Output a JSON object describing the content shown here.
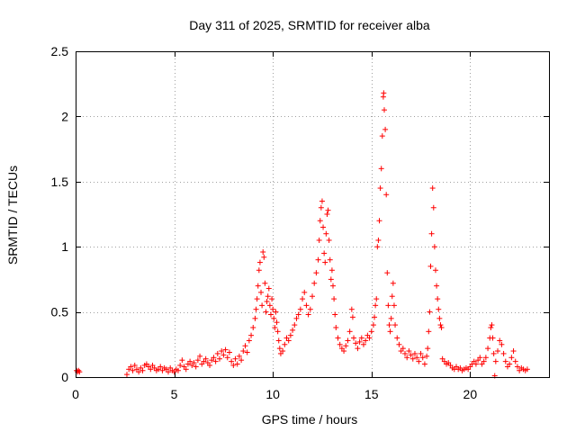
{
  "chart_data": {
    "type": "scatter",
    "title": "Day 311 of 2025, SRMTID for receiver alba",
    "xlabel": "GPS time / hours",
    "ylabel": "SRMTID / TECUs",
    "xlim": [
      0,
      24
    ],
    "ylim": [
      0,
      2.5
    ],
    "xticks": [
      0,
      5,
      10,
      15,
      20
    ],
    "xtick_labels": [
      "0",
      "5",
      "10",
      "15",
      "20"
    ],
    "yticks": [
      0,
      0.5,
      1,
      1.5,
      2,
      2.5
    ],
    "ytick_labels": [
      "0",
      "0.5",
      "1",
      "1.5",
      "2",
      "2.5"
    ],
    "grid": true,
    "marker": "+",
    "series_color": "#ff0000",
    "series": [
      {
        "name": "SRMTID",
        "points": [
          [
            0.05,
            0.05
          ],
          [
            0.1,
            0.04
          ],
          [
            0.15,
            0.05
          ],
          [
            0.2,
            0.04
          ],
          [
            2.6,
            0.02
          ],
          [
            2.7,
            0.06
          ],
          [
            2.8,
            0.08
          ],
          [
            2.9,
            0.05
          ],
          [
            3.0,
            0.09
          ],
          [
            3.1,
            0.06
          ],
          [
            3.2,
            0.04
          ],
          [
            3.3,
            0.07
          ],
          [
            3.4,
            0.05
          ],
          [
            3.5,
            0.09
          ],
          [
            3.6,
            0.1
          ],
          [
            3.7,
            0.08
          ],
          [
            3.8,
            0.06
          ],
          [
            3.9,
            0.09
          ],
          [
            4.0,
            0.07
          ],
          [
            4.1,
            0.05
          ],
          [
            4.2,
            0.06
          ],
          [
            4.3,
            0.08
          ],
          [
            4.4,
            0.05
          ],
          [
            4.5,
            0.07
          ],
          [
            4.6,
            0.06
          ],
          [
            4.7,
            0.04
          ],
          [
            4.8,
            0.07
          ],
          [
            4.9,
            0.05
          ],
          [
            5.0,
            0.04
          ],
          [
            5.1,
            0.06
          ],
          [
            5.2,
            0.05
          ],
          [
            5.3,
            0.09
          ],
          [
            5.4,
            0.13
          ],
          [
            5.5,
            0.08
          ],
          [
            5.6,
            0.06
          ],
          [
            5.7,
            0.1
          ],
          [
            5.8,
            0.12
          ],
          [
            5.9,
            0.09
          ],
          [
            6.0,
            0.11
          ],
          [
            6.1,
            0.08
          ],
          [
            6.2,
            0.13
          ],
          [
            6.3,
            0.16
          ],
          [
            6.4,
            0.1
          ],
          [
            6.5,
            0.12
          ],
          [
            6.6,
            0.14
          ],
          [
            6.7,
            0.11
          ],
          [
            6.8,
            0.09
          ],
          [
            6.9,
            0.13
          ],
          [
            7.0,
            0.15
          ],
          [
            7.1,
            0.12
          ],
          [
            7.2,
            0.18
          ],
          [
            7.3,
            0.14
          ],
          [
            7.4,
            0.2
          ],
          [
            7.5,
            0.17
          ],
          [
            7.6,
            0.21
          ],
          [
            7.7,
            0.15
          ],
          [
            7.8,
            0.19
          ],
          [
            7.9,
            0.12
          ],
          [
            8.0,
            0.09
          ],
          [
            8.1,
            0.14
          ],
          [
            8.2,
            0.1
          ],
          [
            8.3,
            0.16
          ],
          [
            8.4,
            0.13
          ],
          [
            8.5,
            0.2
          ],
          [
            8.6,
            0.24
          ],
          [
            8.7,
            0.19
          ],
          [
            8.8,
            0.28
          ],
          [
            8.9,
            0.32
          ],
          [
            9.0,
            0.38
          ],
          [
            9.1,
            0.45
          ],
          [
            9.15,
            0.52
          ],
          [
            9.2,
            0.6
          ],
          [
            9.25,
            0.7
          ],
          [
            9.3,
            0.82
          ],
          [
            9.35,
            0.88
          ],
          [
            9.4,
            0.65
          ],
          [
            9.45,
            0.55
          ],
          [
            9.5,
            0.96
          ],
          [
            9.55,
            0.92
          ],
          [
            9.6,
            0.72
          ],
          [
            9.65,
            0.5
          ],
          [
            9.7,
            0.58
          ],
          [
            9.75,
            0.62
          ],
          [
            9.8,
            0.68
          ],
          [
            9.85,
            0.55
          ],
          [
            9.9,
            0.48
          ],
          [
            9.95,
            0.6
          ],
          [
            10.0,
            0.52
          ],
          [
            10.05,
            0.45
          ],
          [
            10.1,
            0.38
          ],
          [
            10.15,
            0.5
          ],
          [
            10.2,
            0.42
          ],
          [
            10.25,
            0.35
          ],
          [
            10.3,
            0.28
          ],
          [
            10.35,
            0.22
          ],
          [
            10.4,
            0.18
          ],
          [
            10.5,
            0.2
          ],
          [
            10.6,
            0.25
          ],
          [
            10.7,
            0.3
          ],
          [
            10.8,
            0.28
          ],
          [
            10.9,
            0.32
          ],
          [
            11.0,
            0.36
          ],
          [
            11.1,
            0.4
          ],
          [
            11.2,
            0.45
          ],
          [
            11.3,
            0.48
          ],
          [
            11.4,
            0.52
          ],
          [
            11.5,
            0.6
          ],
          [
            11.6,
            0.65
          ],
          [
            11.7,
            0.55
          ],
          [
            11.8,
            0.48
          ],
          [
            11.9,
            0.52
          ],
          [
            12.0,
            0.62
          ],
          [
            12.1,
            0.72
          ],
          [
            12.2,
            0.8
          ],
          [
            12.3,
            0.9
          ],
          [
            12.35,
            1.05
          ],
          [
            12.4,
            1.2
          ],
          [
            12.45,
            1.3
          ],
          [
            12.5,
            1.35
          ],
          [
            12.55,
            1.15
          ],
          [
            12.6,
            0.95
          ],
          [
            12.65,
            0.88
          ],
          [
            12.7,
            1.1
          ],
          [
            12.75,
            1.25
          ],
          [
            12.8,
            1.28
          ],
          [
            12.85,
            1.05
          ],
          [
            12.9,
            0.9
          ],
          [
            12.95,
            0.75
          ],
          [
            13.0,
            0.82
          ],
          [
            13.05,
            0.7
          ],
          [
            13.1,
            0.6
          ],
          [
            13.15,
            0.48
          ],
          [
            13.2,
            0.38
          ],
          [
            13.3,
            0.3
          ],
          [
            13.4,
            0.25
          ],
          [
            13.5,
            0.22
          ],
          [
            13.6,
            0.2
          ],
          [
            13.7,
            0.24
          ],
          [
            13.8,
            0.28
          ],
          [
            13.9,
            0.35
          ],
          [
            14.0,
            0.52
          ],
          [
            14.05,
            0.46
          ],
          [
            14.1,
            0.3
          ],
          [
            14.2,
            0.26
          ],
          [
            14.3,
            0.22
          ],
          [
            14.4,
            0.27
          ],
          [
            14.5,
            0.3
          ],
          [
            14.6,
            0.25
          ],
          [
            14.7,
            0.28
          ],
          [
            14.8,
            0.32
          ],
          [
            14.9,
            0.3
          ],
          [
            15.0,
            0.35
          ],
          [
            15.1,
            0.4
          ],
          [
            15.15,
            0.46
          ],
          [
            15.2,
            0.55
          ],
          [
            15.25,
            0.6
          ],
          [
            15.3,
            1.0
          ],
          [
            15.35,
            1.05
          ],
          [
            15.4,
            1.2
          ],
          [
            15.45,
            1.45
          ],
          [
            15.5,
            1.6
          ],
          [
            15.55,
            1.85
          ],
          [
            15.6,
            2.15
          ],
          [
            15.62,
            2.18
          ],
          [
            15.65,
            2.05
          ],
          [
            15.7,
            1.9
          ],
          [
            15.75,
            1.4
          ],
          [
            15.8,
            0.8
          ],
          [
            15.85,
            0.55
          ],
          [
            15.9,
            0.4
          ],
          [
            15.95,
            0.35
          ],
          [
            16.0,
            0.45
          ],
          [
            16.05,
            0.62
          ],
          [
            16.1,
            0.72
          ],
          [
            16.15,
            0.55
          ],
          [
            16.2,
            0.4
          ],
          [
            16.3,
            0.3
          ],
          [
            16.4,
            0.25
          ],
          [
            16.5,
            0.2
          ],
          [
            16.6,
            0.22
          ],
          [
            16.7,
            0.18
          ],
          [
            16.8,
            0.15
          ],
          [
            16.9,
            0.2
          ],
          [
            17.0,
            0.17
          ],
          [
            17.1,
            0.14
          ],
          [
            17.2,
            0.18
          ],
          [
            17.3,
            0.15
          ],
          [
            17.4,
            0.12
          ],
          [
            17.5,
            0.18
          ],
          [
            17.6,
            0.15
          ],
          [
            17.7,
            0.1
          ],
          [
            17.8,
            0.16
          ],
          [
            17.85,
            0.22
          ],
          [
            17.9,
            0.35
          ],
          [
            17.95,
            0.5
          ],
          [
            18.0,
            0.85
          ],
          [
            18.05,
            1.1
          ],
          [
            18.1,
            1.45
          ],
          [
            18.15,
            1.3
          ],
          [
            18.2,
            1.0
          ],
          [
            18.25,
            0.82
          ],
          [
            18.3,
            0.7
          ],
          [
            18.35,
            0.6
          ],
          [
            18.4,
            0.52
          ],
          [
            18.45,
            0.45
          ],
          [
            18.5,
            0.4
          ],
          [
            18.55,
            0.38
          ],
          [
            18.6,
            0.14
          ],
          [
            18.7,
            0.12
          ],
          [
            18.8,
            0.1
          ],
          [
            18.9,
            0.11
          ],
          [
            19.0,
            0.09
          ],
          [
            19.1,
            0.07
          ],
          [
            19.2,
            0.06
          ],
          [
            19.3,
            0.08
          ],
          [
            19.4,
            0.06
          ],
          [
            19.5,
            0.07
          ],
          [
            19.6,
            0.05
          ],
          [
            19.7,
            0.06
          ],
          [
            19.8,
            0.07
          ],
          [
            19.9,
            0.06
          ],
          [
            20.0,
            0.08
          ],
          [
            20.1,
            0.1
          ],
          [
            20.2,
            0.12
          ],
          [
            20.3,
            0.1
          ],
          [
            20.4,
            0.13
          ],
          [
            20.5,
            0.15
          ],
          [
            20.6,
            0.1
          ],
          [
            20.7,
            0.12
          ],
          [
            20.8,
            0.15
          ],
          [
            20.9,
            0.22
          ],
          [
            21.0,
            0.3
          ],
          [
            21.05,
            0.38
          ],
          [
            21.1,
            0.4
          ],
          [
            21.15,
            0.3
          ],
          [
            21.2,
            0.18
          ],
          [
            21.25,
            0.01
          ],
          [
            21.3,
            0.12
          ],
          [
            21.4,
            0.2
          ],
          [
            21.5,
            0.28
          ],
          [
            21.6,
            0.25
          ],
          [
            21.7,
            0.18
          ],
          [
            21.8,
            0.12
          ],
          [
            21.9,
            0.08
          ],
          [
            22.0,
            0.1
          ],
          [
            22.1,
            0.15
          ],
          [
            22.2,
            0.2
          ],
          [
            22.3,
            0.12
          ],
          [
            22.4,
            0.08
          ],
          [
            22.5,
            0.05
          ],
          [
            22.6,
            0.07
          ],
          [
            22.7,
            0.06
          ],
          [
            22.8,
            0.05
          ],
          [
            22.9,
            0.06
          ]
        ]
      }
    ]
  }
}
